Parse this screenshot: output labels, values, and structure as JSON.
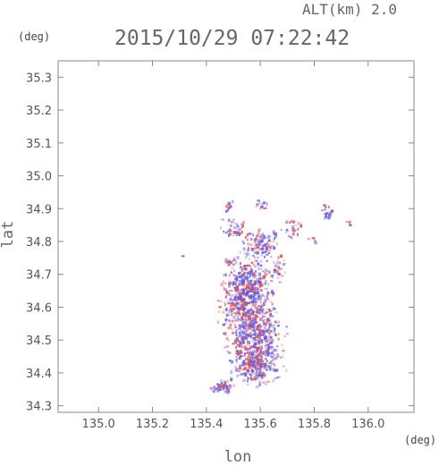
{
  "header": {
    "altitude_label": "ALT(km) 2.0",
    "timestamp": "2015/10/29 07:22:42"
  },
  "chart_data": {
    "type": "heatmap",
    "title": "2015/10/29 07:22:42",
    "subtitle": "ALT(km) 2.0",
    "xlabel": "lon",
    "ylabel": "lat",
    "x_unit": "(deg)",
    "y_unit": "(deg)",
    "xlim": [
      134.85,
      136.17
    ],
    "ylim": [
      34.28,
      35.35
    ],
    "x_ticks": [
      135.0,
      135.2,
      135.4,
      135.6,
      135.8,
      136.0
    ],
    "y_ticks": [
      34.3,
      34.4,
      34.5,
      34.6,
      34.7,
      34.8,
      34.9,
      35.0,
      35.1,
      35.2,
      35.3
    ],
    "x_tick_labels": [
      "135.0",
      "135.2",
      "135.4",
      "135.6",
      "135.8",
      "136.0"
    ],
    "y_tick_labels": [
      "34.3",
      "34.4",
      "34.5",
      "34.6",
      "34.7",
      "34.8",
      "34.9",
      "35.0",
      "35.1",
      "35.2",
      "35.3"
    ],
    "grid": false,
    "colors": {
      "positive": "#e05050",
      "negative": "#5a5ae8"
    },
    "cell_size_deg": [
      0.008,
      0.007
    ],
    "clusters": [
      {
        "lon": 135.55,
        "lat": 34.65,
        "rlon": 0.07,
        "rlat": 0.08,
        "n": 520
      },
      {
        "lon": 135.57,
        "lat": 34.52,
        "rlon": 0.08,
        "rlat": 0.07,
        "n": 380
      },
      {
        "lon": 135.58,
        "lat": 34.43,
        "rlon": 0.07,
        "rlat": 0.05,
        "n": 260
      },
      {
        "lon": 135.46,
        "lat": 34.36,
        "rlon": 0.04,
        "rlat": 0.015,
        "n": 50
      },
      {
        "lon": 135.6,
        "lat": 34.8,
        "rlon": 0.05,
        "rlat": 0.04,
        "n": 110
      },
      {
        "lon": 135.5,
        "lat": 34.84,
        "rlon": 0.04,
        "rlat": 0.025,
        "n": 45
      },
      {
        "lon": 135.48,
        "lat": 34.91,
        "rlon": 0.015,
        "rlat": 0.015,
        "n": 14
      },
      {
        "lon": 135.6,
        "lat": 34.91,
        "rlon": 0.02,
        "rlat": 0.015,
        "n": 14
      },
      {
        "lon": 135.72,
        "lat": 34.84,
        "rlon": 0.03,
        "rlat": 0.02,
        "n": 26
      },
      {
        "lon": 135.85,
        "lat": 34.89,
        "rlon": 0.02,
        "rlat": 0.02,
        "n": 22
      },
      {
        "lon": 135.79,
        "lat": 34.81,
        "rlon": 0.015,
        "rlat": 0.01,
        "n": 7
      },
      {
        "lon": 135.93,
        "lat": 34.86,
        "rlon": 0.01,
        "rlat": 0.008,
        "n": 5
      },
      {
        "lon": 135.49,
        "lat": 34.74,
        "rlon": 0.02,
        "rlat": 0.02,
        "n": 12
      },
      {
        "lon": 135.66,
        "lat": 34.72,
        "rlon": 0.03,
        "rlat": 0.03,
        "n": 30
      },
      {
        "lon": 135.31,
        "lat": 34.76,
        "rlon": 0.006,
        "rlat": 0.005,
        "n": 2
      }
    ]
  }
}
